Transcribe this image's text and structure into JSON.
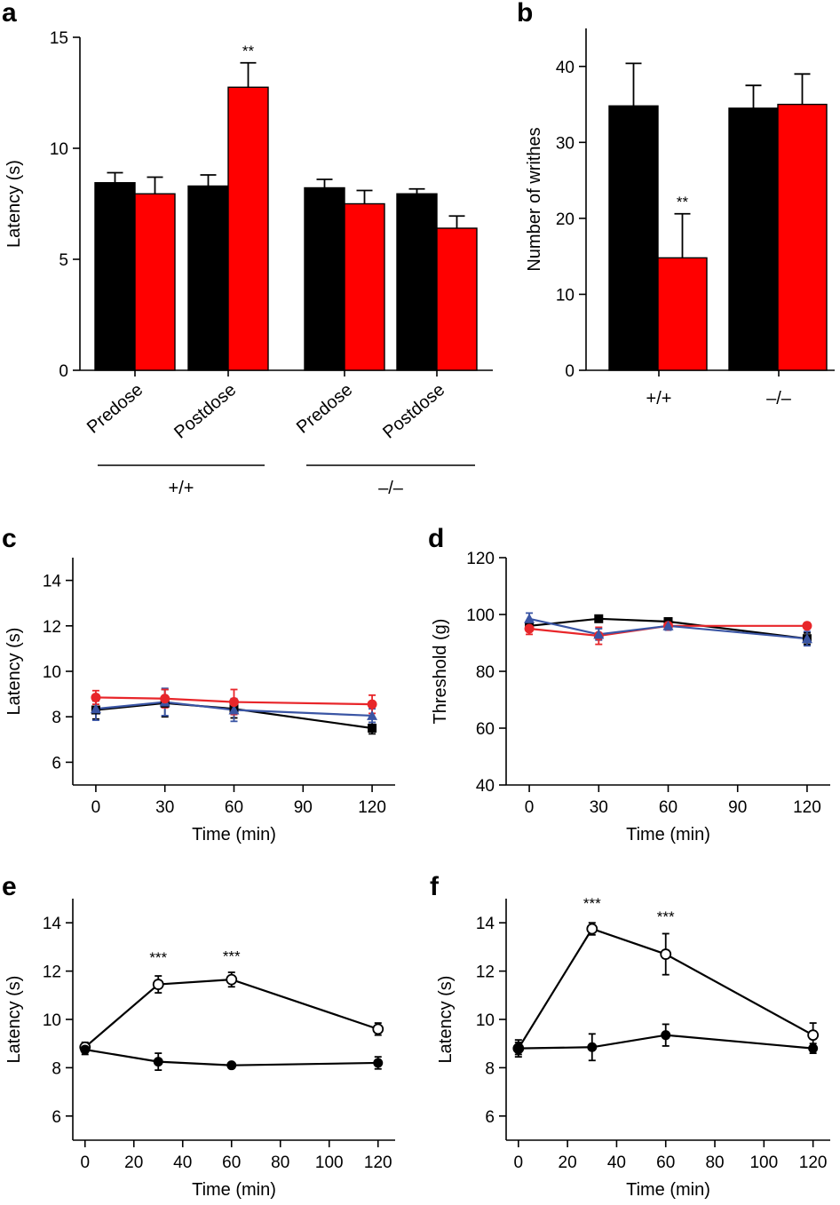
{
  "chart_data": [
    {
      "id": "a",
      "type": "bar",
      "panel_letter": "a",
      "ylabel": "Latency (s)",
      "xlabel": "",
      "ylim": [
        0,
        15
      ],
      "yticks": [
        "0",
        "5",
        "10",
        "15"
      ],
      "categories": [
        "Predose",
        "Postdose",
        "Predose",
        "Postdose"
      ],
      "groups": [
        {
          "label": "+/+"
        },
        {
          "label": "–/–"
        }
      ],
      "series": [
        {
          "name": "black",
          "color": "#000000",
          "values": [
            8.45,
            8.3,
            8.22,
            7.95
          ],
          "errors": [
            0.45,
            0.5,
            0.38,
            0.22
          ]
        },
        {
          "name": "red",
          "color": "#ff0000",
          "values": [
            7.95,
            12.75,
            7.5,
            6.4
          ],
          "errors": [
            0.75,
            1.1,
            0.6,
            0.55
          ]
        }
      ],
      "annotations": [
        {
          "text": "**",
          "category": 1,
          "series": 1
        }
      ]
    },
    {
      "id": "b",
      "type": "bar",
      "panel_letter": "b",
      "ylabel": "Number of writhes",
      "xlabel": "",
      "ylim": [
        0,
        45
      ],
      "yticks": [
        "0",
        "10",
        "20",
        "30",
        "40"
      ],
      "categories": [
        "+/+",
        "–/–"
      ],
      "series": [
        {
          "name": "black",
          "color": "#000000",
          "values": [
            34.8,
            34.5
          ],
          "errors": [
            5.6,
            3.0
          ]
        },
        {
          "name": "red",
          "color": "#ff0000",
          "values": [
            14.8,
            35.0
          ],
          "errors": [
            5.8,
            4.0
          ]
        }
      ],
      "annotations": [
        {
          "text": "**",
          "category": 0,
          "series": 1
        }
      ]
    },
    {
      "id": "c",
      "type": "line",
      "panel_letter": "c",
      "ylabel": "Latency (s)",
      "xlabel": "Time (min)",
      "xlim": [
        -10,
        130
      ],
      "ylim": [
        5,
        15
      ],
      "xticks": [
        "0",
        "30",
        "60",
        "90",
        "120"
      ],
      "yticks": [
        "6",
        "8",
        "10",
        "12",
        "14"
      ],
      "x": [
        0,
        30,
        60,
        120
      ],
      "series": [
        {
          "name": "black",
          "color": "#000000",
          "marker": "square",
          "values": [
            8.3,
            8.6,
            8.35,
            7.5
          ],
          "errors": [
            0.4,
            0.6,
            0.4,
            0.25
          ]
        },
        {
          "name": "blue",
          "color": "#3a55a4",
          "marker": "triangle",
          "values": [
            8.35,
            8.65,
            8.3,
            8.05
          ],
          "errors": [
            0.5,
            0.6,
            0.5,
            0.3
          ]
        },
        {
          "name": "red",
          "color": "#e8262a",
          "marker": "circle",
          "values": [
            8.85,
            8.8,
            8.65,
            8.55
          ],
          "errors": [
            0.3,
            0.4,
            0.55,
            0.4
          ]
        }
      ]
    },
    {
      "id": "d",
      "type": "line",
      "panel_letter": "d",
      "ylabel": "Threshold (g)",
      "xlabel": "Time (min)",
      "xlim": [
        -10,
        130
      ],
      "ylim": [
        40,
        120
      ],
      "xticks": [
        "0",
        "30",
        "60",
        "90",
        "120"
      ],
      "yticks": [
        "40",
        "60",
        "80",
        "100",
        "120"
      ],
      "x": [
        0,
        30,
        60,
        120
      ],
      "series": [
        {
          "name": "black",
          "color": "#000000",
          "marker": "square",
          "values": [
            96,
            98.5,
            97.5,
            91.5
          ],
          "errors": [
            1.5,
            1,
            1,
            2
          ]
        },
        {
          "name": "red",
          "color": "#e8262a",
          "marker": "circle",
          "values": [
            95,
            92.5,
            96,
            96
          ],
          "errors": [
            2,
            3,
            1.5,
            1
          ]
        },
        {
          "name": "blue",
          "color": "#3a55a4",
          "marker": "triangle",
          "values": [
            98.5,
            93,
            96,
            91.5
          ],
          "errors": [
            2,
            2,
            1.5,
            2.5
          ]
        }
      ]
    },
    {
      "id": "e",
      "type": "line",
      "panel_letter": "e",
      "ylabel": "Latency (s)",
      "xlabel": "Time (min)",
      "xlim": [
        -5,
        127
      ],
      "ylim": [
        5,
        15
      ],
      "xticks": [
        "0",
        "20",
        "40",
        "60",
        "80",
        "100",
        "120"
      ],
      "yticks": [
        "6",
        "8",
        "10",
        "12",
        "14"
      ],
      "x": [
        0,
        30,
        60,
        120
      ],
      "series": [
        {
          "name": "open",
          "color": "#000000",
          "marker": "open-circle",
          "values": [
            8.85,
            11.45,
            11.65,
            9.6
          ],
          "errors": [
            0.2,
            0.35,
            0.3,
            0.25
          ]
        },
        {
          "name": "filled",
          "color": "#000000",
          "marker": "filled-circle",
          "values": [
            8.75,
            8.25,
            8.1,
            8.2
          ],
          "errors": [
            0.2,
            0.35,
            0.1,
            0.25
          ]
        }
      ],
      "annotations": [
        {
          "text": "***",
          "x": 30,
          "y": 12.35
        },
        {
          "text": "***",
          "x": 60,
          "y": 12.4
        }
      ]
    },
    {
      "id": "f",
      "type": "line",
      "panel_letter": "f",
      "ylabel": "Latency (s)",
      "xlabel": "Time (min)",
      "xlim": [
        -5,
        127
      ],
      "ylim": [
        5,
        15
      ],
      "xticks": [
        "0",
        "20",
        "40",
        "60",
        "80",
        "100",
        "120"
      ],
      "yticks": [
        "6",
        "8",
        "10",
        "12",
        "14"
      ],
      "x": [
        0,
        30,
        60,
        120
      ],
      "series": [
        {
          "name": "open",
          "color": "#000000",
          "marker": "open-circle",
          "values": [
            8.8,
            13.75,
            12.7,
            9.35
          ],
          "errors": [
            0.35,
            0.25,
            0.85,
            0.5
          ]
        },
        {
          "name": "filled",
          "color": "#000000",
          "marker": "filled-circle",
          "values": [
            8.8,
            8.85,
            9.35,
            8.8
          ],
          "errors": [
            0.25,
            0.55,
            0.45,
            0.2
          ]
        }
      ],
      "annotations": [
        {
          "text": "***",
          "x": 30,
          "y": 14.6
        },
        {
          "text": "***",
          "x": 60,
          "y": 14.05
        }
      ]
    }
  ]
}
